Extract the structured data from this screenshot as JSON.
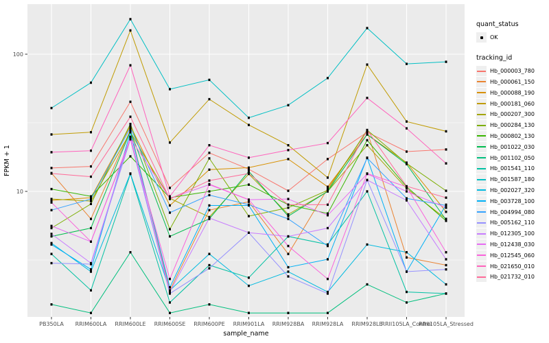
{
  "figure": {
    "x_axis": {
      "title": "sample_name"
    },
    "y_axis": {
      "title": "FPKM + 1",
      "tick_labels": [
        "100",
        "10"
      ],
      "tick_values": [
        100,
        10
      ]
    }
  },
  "legend": {
    "quant_status": {
      "title": "quant_status",
      "items": [
        {
          "label": "OK",
          "marker": "point-icon",
          "color": "#000000"
        }
      ]
    },
    "tracking_id": {
      "title": "tracking_id"
    }
  },
  "colors": {
    "panel_bg": "#EBEBEB",
    "grid": "#FFFFFF",
    "axis_text": "#4D4D4D",
    "axis_title": "#000000",
    "tick_mark": "#333333",
    "point": "#000000",
    "legend_key_bg": "#EFEFEF"
  },
  "chart_data": {
    "type": "line",
    "title": "",
    "xlabel": "sample_name",
    "ylabel": "FPKM + 1",
    "y_scale": "log10",
    "ylim": [
      1.2,
      230
    ],
    "y_major_gridlines": [
      10,
      100
    ],
    "y_minor_gridlines": [
      3.162,
      31.62,
      316
    ],
    "grid": true,
    "legend_position": "right",
    "point_legend": {
      "title": "quant_status",
      "label": "OK"
    },
    "categories": [
      "PB350LA",
      "RRIM600LA",
      "RRIM600LE",
      "RRIM600SE",
      "RRIM600PE",
      "RRIM901LA",
      "RRIM928BA",
      "RRIM928LA",
      "RRIM928LE",
      "RRII105LA_Control",
      "RRII105LA_Stressed"
    ],
    "series": [
      {
        "name": "Hb_000003_780",
        "color": "#F8766D",
        "values": [
          14.8,
          15.2,
          45,
          10.6,
          19.1,
          14.5,
          10.1,
          17.2,
          27,
          19.5,
          20.2
        ]
      },
      {
        "name": "Hb_000061_150",
        "color": "#EA8331",
        "values": [
          13.6,
          6.3,
          28,
          1.9,
          7.3,
          8.4,
          3.5,
          10.5,
          27.5,
          3.3,
          2.9
        ]
      },
      {
        "name": "Hb_000088_190",
        "color": "#D89000",
        "values": [
          8.6,
          9.0,
          30,
          7.9,
          14.4,
          14.9,
          17.2,
          10.8,
          26,
          16.2,
          7.1
        ]
      },
      {
        "name": "Hb_000181_060",
        "color": "#C09B00",
        "values": [
          26,
          27,
          149,
          22.7,
          47,
          30.5,
          21.7,
          12.6,
          84,
          32.3,
          27.4
        ]
      },
      {
        "name": "Hb_000207_300",
        "color": "#A3A500",
        "values": [
          8.8,
          8.5,
          27,
          8.9,
          6.5,
          13.4,
          6.8,
          10.0,
          21.7,
          10.5,
          6.3
        ]
      },
      {
        "name": "Hb_000284_130",
        "color": "#7CAE00",
        "values": [
          5.4,
          8.1,
          31,
          5.3,
          17.4,
          6.6,
          7.6,
          10.2,
          28,
          16.0,
          10.1
        ]
      },
      {
        "name": "Hb_000802_130",
        "color": "#39B600",
        "values": [
          10.4,
          9.2,
          18,
          9.0,
          10.0,
          11.2,
          8.0,
          6.9,
          23.6,
          10.8,
          6.1
        ]
      },
      {
        "name": "Hb_001022_030",
        "color": "#00BB4E",
        "values": [
          4.7,
          5.4,
          27.5,
          4.7,
          6.3,
          14.0,
          6.6,
          10.0,
          26,
          15.8,
          6.2
        ]
      },
      {
        "name": "Hb_001102_050",
        "color": "#00BF7D",
        "values": [
          1.5,
          1.3,
          3.6,
          1.3,
          1.5,
          1.3,
          1.3,
          1.3,
          2.1,
          1.55,
          1.8
        ]
      },
      {
        "name": "Hb_001541_110",
        "color": "#00C1A3",
        "values": [
          3.5,
          1.9,
          13.4,
          1.55,
          2.9,
          2.35,
          4.7,
          4.1,
          10.0,
          1.85,
          1.8
        ]
      },
      {
        "name": "Hb_001587_180",
        "color": "#00BFC4",
        "values": [
          40.5,
          62,
          180,
          55.6,
          65,
          34.4,
          42.5,
          67,
          155,
          85,
          88
        ]
      },
      {
        "name": "Hb_002027_320",
        "color": "#00BAE0",
        "values": [
          4.2,
          2.6,
          13.5,
          1.9,
          3.5,
          2.05,
          2.6,
          1.85,
          4.1,
          3.6,
          2.1
        ]
      },
      {
        "name": "Hb_003728_100",
        "color": "#00B0F6",
        "values": [
          4.1,
          2.7,
          27,
          2.0,
          7.9,
          7.9,
          2.8,
          3.2,
          17.6,
          2.6,
          8.0
        ]
      },
      {
        "name": "Hb_004994_080",
        "color": "#35A2FF",
        "values": [
          7.3,
          8.8,
          29,
          7.0,
          9.4,
          8.0,
          6.3,
          4.0,
          17.5,
          8.9,
          7.9
        ]
      },
      {
        "name": "Hb_005162_110",
        "color": "#9590FF",
        "values": [
          3.0,
          2.95,
          24,
          1.8,
          2.75,
          5.0,
          2.4,
          1.8,
          12.1,
          2.6,
          2.7
        ]
      },
      {
        "name": "Hb_012305_100",
        "color": "#C77CFF",
        "values": [
          4.9,
          3.0,
          25,
          1.85,
          6.4,
          5.0,
          4.7,
          5.4,
          12.1,
          8.6,
          3.2
        ]
      },
      {
        "name": "Hb_012438_030",
        "color": "#E76BF3",
        "values": [
          5.6,
          4.3,
          24.4,
          8.9,
          11.2,
          8.7,
          8.8,
          6.7,
          13.4,
          10.0,
          7.6
        ]
      },
      {
        "name": "Hb_012545_060",
        "color": "#FA62DB",
        "values": [
          8.3,
          4.3,
          24,
          2.3,
          11.3,
          8.7,
          4.0,
          2.3,
          13.5,
          10.8,
          3.6
        ]
      },
      {
        "name": "Hb_021650_010",
        "color": "#FF62BC",
        "values": [
          19.3,
          19.8,
          83,
          9.2,
          21.7,
          17.6,
          20,
          22.5,
          48,
          28.8,
          16
        ]
      },
      {
        "name": "Hb_021732_010",
        "color": "#FF6A98",
        "values": [
          13.5,
          12.8,
          35,
          8.8,
          12.0,
          13.5,
          8.0,
          8.0,
          28,
          10.9,
          9.0
        ]
      }
    ]
  }
}
